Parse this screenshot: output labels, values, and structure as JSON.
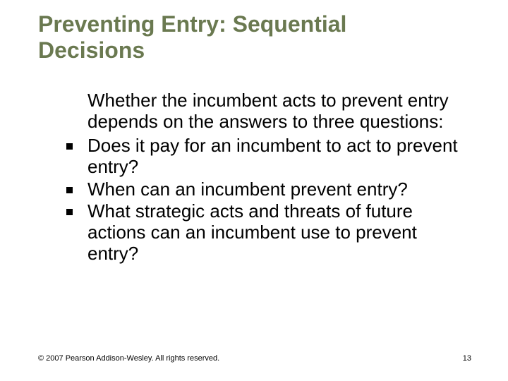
{
  "slide": {
    "title": "Preventing Entry: Sequential Decisions",
    "intro": "Whether the incumbent acts to prevent entry depends on the answers to three questions:",
    "bullets": [
      "Does it pay for an incumbent to act to prevent entry?",
      "When can an incumbent prevent entry?",
      "What strategic acts and threats of future actions can an incumbent use to prevent entry?"
    ],
    "copyright": "© 2007 Pearson Addison-Wesley. All rights reserved.",
    "page_number": "13"
  },
  "style": {
    "title_color": "#6a7950",
    "title_fontsize": 32,
    "body_color": "#000000",
    "body_fontsize": 26,
    "footer_fontsize": 11,
    "background_color": "#ffffff",
    "bullet_marker": "square",
    "bullet_size": 9
  }
}
